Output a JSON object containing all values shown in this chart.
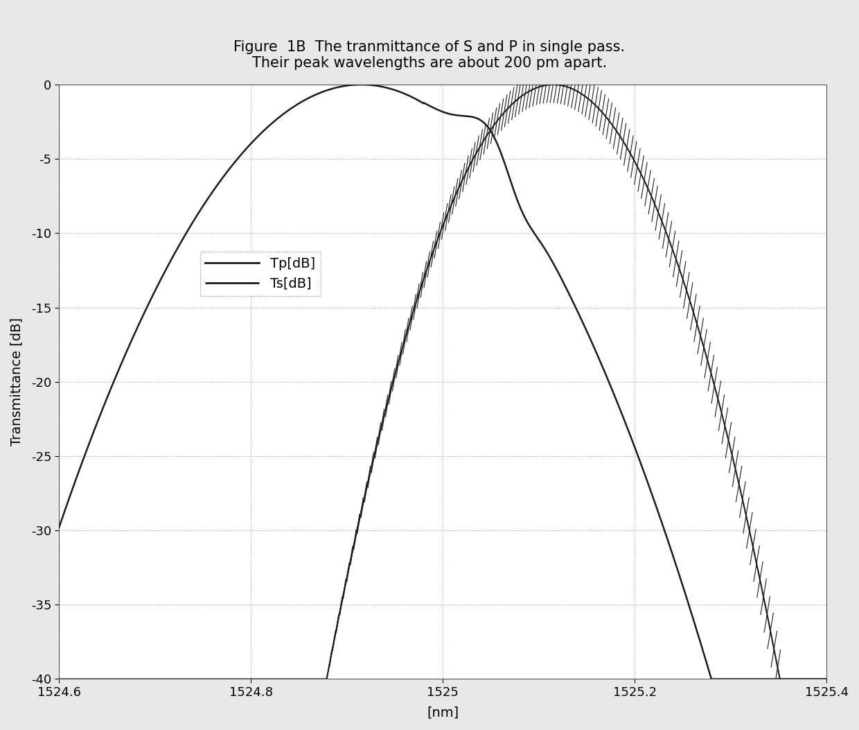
{
  "title_line1": "Figure  1B  The tranmittance of S and P in single pass.",
  "title_line2": "Their peak wavelengths are about 200 pm apart.",
  "xlabel": "[nm]",
  "ylabel": "Transmittance [dB]",
  "xlim": [
    1524.6,
    1525.4
  ],
  "ylim": [
    -40,
    0
  ],
  "xticks": [
    1524.6,
    1524.8,
    1525.0,
    1525.2,
    1525.4
  ],
  "yticks": [
    0,
    -5,
    -10,
    -15,
    -20,
    -25,
    -30,
    -35,
    -40
  ],
  "tp_peak": 1524.915,
  "ts_peak": 1525.115,
  "tp_sigma": 0.085,
  "ts_sigma": 0.055,
  "background_color": "#e8e8e8",
  "plot_bg_color": "#ffffff",
  "grid_color": "#999999",
  "line_color_tp": "#1a1a1a",
  "line_color_ts": "#1a1a1a",
  "legend_label_tp": "Tp[dB]",
  "legend_label_ts": "Ts[dB]",
  "title_fontsize": 15,
  "axis_fontsize": 14,
  "tick_fontsize": 13,
  "legend_fontsize": 14,
  "shoulder_x": 1525.05,
  "shoulder_amp": 2.5,
  "shoulder_sigma": 0.025,
  "ripple_x": 1525.08,
  "ripple_amp": 1.2,
  "ripple_sigma": 0.015
}
